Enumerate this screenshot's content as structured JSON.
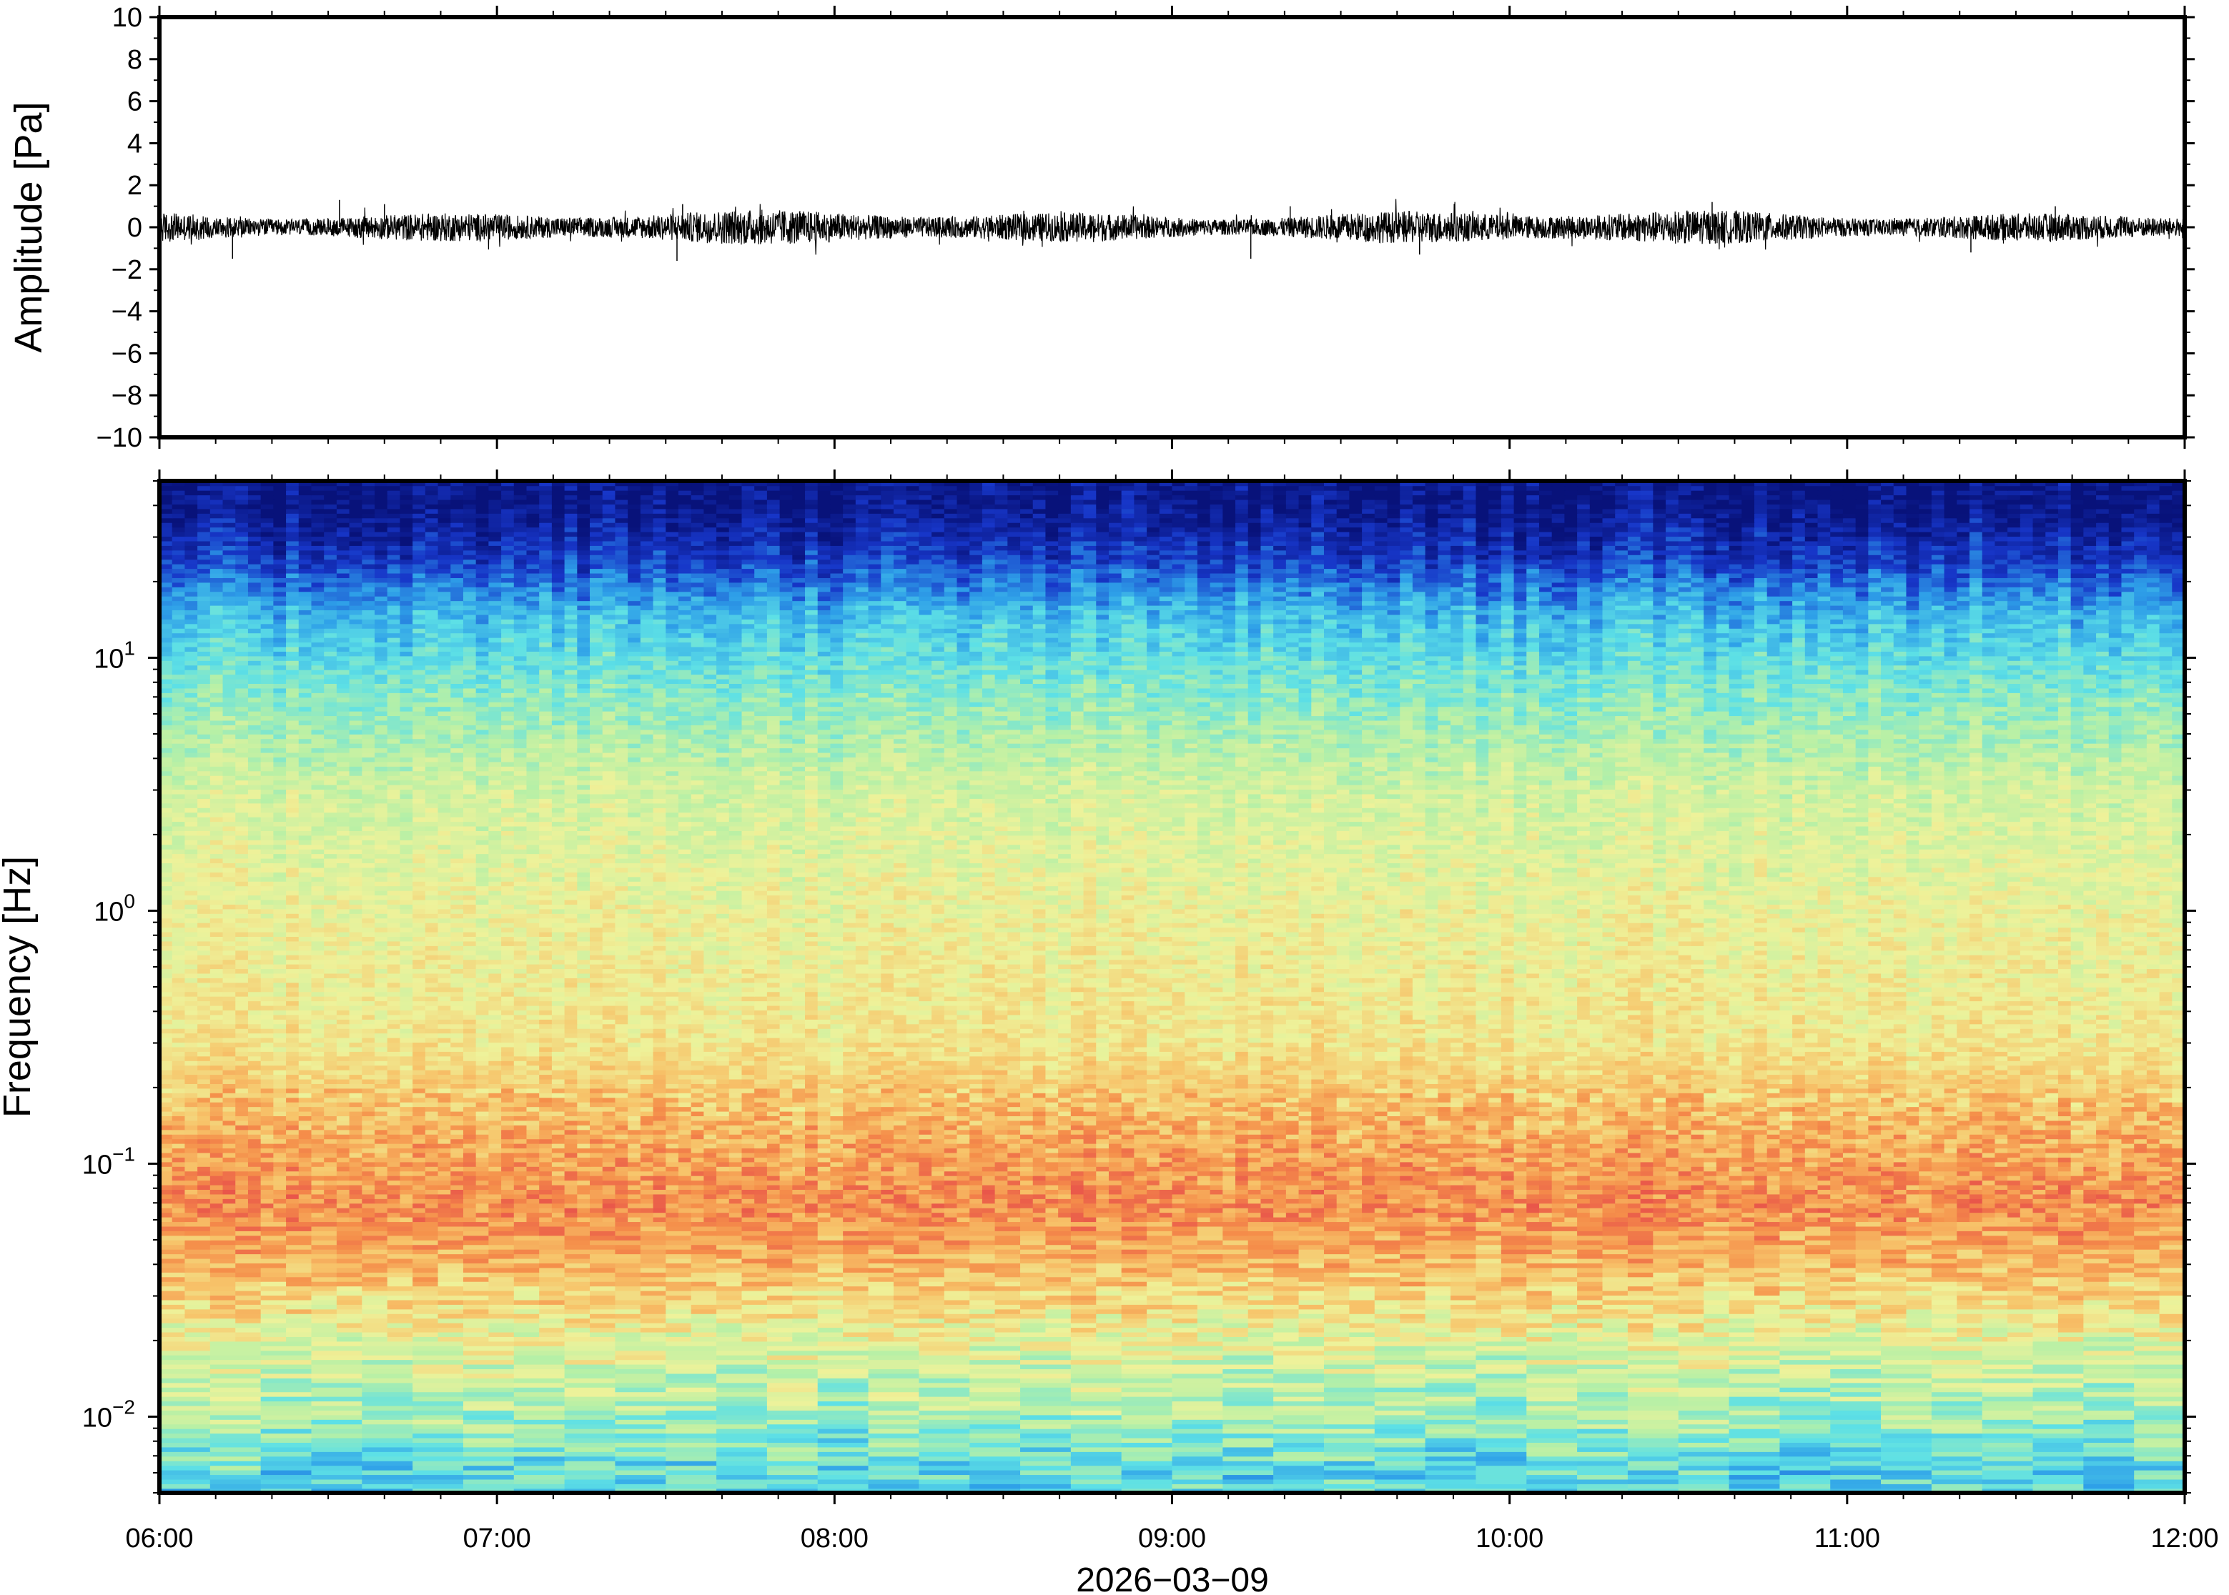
{
  "chart_data": [
    {
      "type": "line",
      "ylabel": "Amplitude [Pa]",
      "ylim": [
        -10,
        10
      ],
      "yticks": [
        10,
        8,
        6,
        4,
        2,
        0,
        -2,
        -4,
        -6,
        -8,
        -10
      ],
      "ytick_labels": [
        "10",
        "8",
        "6",
        "4",
        "2",
        "0",
        "−2",
        "−4",
        "−6",
        "−8",
        "−10"
      ],
      "xlim": [
        "2026-03-09 06:00",
        "2026-03-09 12:00"
      ],
      "series": [
        {
          "x_start": "2026-03-09 06:00",
          "x_end": "2026-03-09 12:00",
          "mean": 0,
          "envelope_typical": [
            -0.6,
            0.6
          ],
          "peaks": [
            {
              "time": "06:13",
              "value": -1.5
            },
            {
              "time": "06:32",
              "value": 1.3
            },
            {
              "time": "06:40",
              "value": 1.1
            },
            {
              "time": "07:32",
              "value": -1.6
            },
            {
              "time": "07:33",
              "value": 1.1
            },
            {
              "time": "09:14",
              "value": -1.5
            },
            {
              "time": "09:21",
              "value": 1.0
            },
            {
              "time": "09:44",
              "value": -1.3
            },
            {
              "time": "10:36",
              "value": 1.2
            },
            {
              "time": "11:22",
              "value": -1.2
            },
            {
              "time": "11:37",
              "value": 1.0
            }
          ]
        }
      ]
    },
    {
      "type": "heatmap",
      "ylabel": "Frequency [Hz]",
      "yscale": "log",
      "ylim": [
        0.005,
        50
      ],
      "yticks": [
        0.01,
        0.1,
        1,
        10
      ],
      "ytick_labels": [
        {
          "base": "10",
          "exp": "−2"
        },
        {
          "base": "10",
          "exp": "−1"
        },
        {
          "base": "10",
          "exp": "0"
        },
        {
          "base": "10",
          "exp": "1"
        }
      ],
      "xlim": [
        "2026-03-09 06:00",
        "2026-03-09 12:00"
      ],
      "xticks": [
        "06:00",
        "07:00",
        "08:00",
        "09:00",
        "10:00",
        "11:00",
        "12:00"
      ],
      "xlabel": "2026−03−09",
      "colormap": "spectral",
      "colormap_stops": [
        "#08127a",
        "#1736c8",
        "#2e9fe8",
        "#5de0e6",
        "#b7f0a6",
        "#eef29a",
        "#f7c46a",
        "#f58e4a",
        "#e9564a"
      ],
      "spectral_profile": [
        {
          "frequency": 40,
          "level": 0.02
        },
        {
          "frequency": 25,
          "level": 0.12
        },
        {
          "frequency": 15,
          "level": 0.3
        },
        {
          "frequency": 8,
          "level": 0.42
        },
        {
          "frequency": 3,
          "level": 0.56
        },
        {
          "frequency": 1,
          "level": 0.62
        },
        {
          "frequency": 0.3,
          "level": 0.66
        },
        {
          "frequency": 0.15,
          "level": 0.78
        },
        {
          "frequency": 0.07,
          "level": 0.88
        },
        {
          "frequency": 0.04,
          "level": 0.78
        },
        {
          "frequency": 0.02,
          "level": 0.6
        },
        {
          "frequency": 0.01,
          "level": 0.48
        },
        {
          "frequency": 0.006,
          "level": 0.36
        }
      ]
    }
  ]
}
